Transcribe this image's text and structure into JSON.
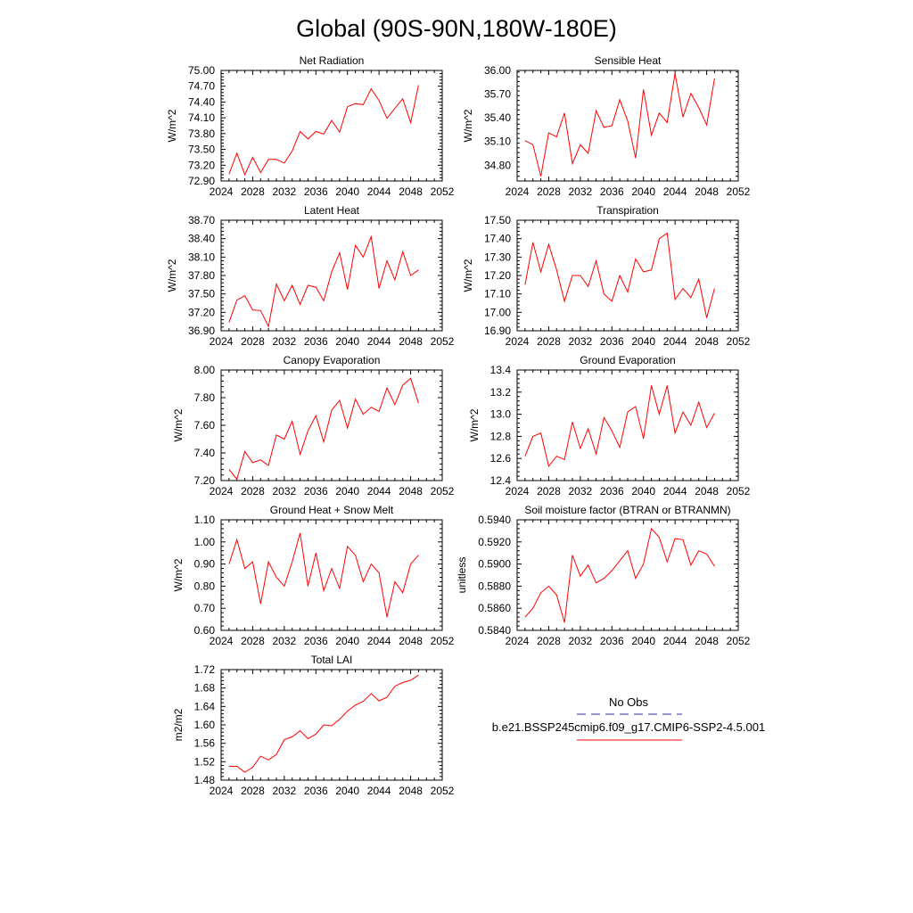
{
  "title": "Global (90S-90N,180W-180E)",
  "colors": {
    "model": "#ff0000",
    "obs": "#3030a0",
    "axis": "#000000"
  },
  "legend": {
    "obs_label": "No Obs",
    "model_label": "b.e21.BSSP245cmip6.f09_g17.CMIP6-SSP2-4.5.001"
  },
  "chart_data": [
    {
      "type": "line",
      "title": "Net Radiation",
      "ylabel": "W/m^2",
      "xlim": [
        2024,
        2052
      ],
      "ylim": [
        72.9,
        75.0
      ],
      "xticks": [
        2024,
        2028,
        2032,
        2036,
        2040,
        2044,
        2048,
        2052
      ],
      "yticks": [
        "72.90",
        "73.20",
        "73.50",
        "73.80",
        "74.10",
        "74.40",
        "74.70",
        "75.00"
      ],
      "series": [
        {
          "x": [
            2025,
            2026,
            2027,
            2028,
            2029,
            2030,
            2031,
            2032,
            2033,
            2034,
            2035,
            2036,
            2037,
            2038,
            2039,
            2040,
            2041,
            2042,
            2043,
            2044,
            2045,
            2046,
            2047,
            2048,
            2049
          ],
          "y": [
            73.03,
            73.43,
            73.02,
            73.35,
            73.06,
            73.31,
            73.31,
            73.24,
            73.47,
            73.84,
            73.7,
            73.84,
            73.79,
            74.05,
            73.83,
            74.31,
            74.37,
            74.35,
            74.65,
            74.43,
            74.09,
            74.28,
            74.46,
            74.01,
            74.72
          ]
        }
      ]
    },
    {
      "type": "line",
      "title": "Sensible Heat",
      "ylabel": "W/m^2",
      "xlim": [
        2024,
        2052
      ],
      "ylim": [
        34.6,
        36.0
      ],
      "xticks": [
        2024,
        2028,
        2032,
        2036,
        2040,
        2044,
        2048,
        2052
      ],
      "yticks": [
        "34.80",
        "35.10",
        "35.40",
        "35.70",
        "36.00"
      ],
      "series": [
        {
          "x": [
            2025,
            2026,
            2027,
            2028,
            2029,
            2030,
            2031,
            2032,
            2033,
            2034,
            2035,
            2036,
            2037,
            2038,
            2039,
            2040,
            2041,
            2042,
            2043,
            2044,
            2045,
            2046,
            2047,
            2048,
            2049
          ],
          "y": [
            35.11,
            35.06,
            34.66,
            35.21,
            35.16,
            35.46,
            34.82,
            35.06,
            34.95,
            35.49,
            35.28,
            35.3,
            35.63,
            35.36,
            34.89,
            35.76,
            35.18,
            35.46,
            35.34,
            35.96,
            35.41,
            35.71,
            35.53,
            35.31,
            35.9
          ]
        }
      ]
    },
    {
      "type": "line",
      "title": "Latent Heat",
      "ylabel": "W/m^2",
      "xlim": [
        2024,
        2052
      ],
      "ylim": [
        36.9,
        38.7
      ],
      "xticks": [
        2024,
        2028,
        2032,
        2036,
        2040,
        2044,
        2048,
        2052
      ],
      "yticks": [
        "36.90",
        "37.20",
        "37.50",
        "37.80",
        "38.10",
        "38.40",
        "38.70"
      ],
      "series": [
        {
          "x": [
            2025,
            2026,
            2027,
            2028,
            2029,
            2030,
            2031,
            2032,
            2033,
            2034,
            2035,
            2036,
            2037,
            2038,
            2039,
            2040,
            2041,
            2042,
            2043,
            2044,
            2045,
            2046,
            2047,
            2048,
            2049
          ],
          "y": [
            37.04,
            37.4,
            37.47,
            37.24,
            37.23,
            36.97,
            37.66,
            37.39,
            37.64,
            37.33,
            37.64,
            37.61,
            37.39,
            37.86,
            38.17,
            37.57,
            38.29,
            38.1,
            38.43,
            37.59,
            38.04,
            37.73,
            38.19,
            37.8,
            37.89
          ]
        }
      ]
    },
    {
      "type": "line",
      "title": "Transpiration",
      "ylabel": "W/m^2",
      "xlim": [
        2024,
        2052
      ],
      "ylim": [
        16.9,
        17.5
      ],
      "xticks": [
        2024,
        2028,
        2032,
        2036,
        2040,
        2044,
        2048,
        2052
      ],
      "yticks": [
        "16.90",
        "17.00",
        "17.10",
        "17.20",
        "17.30",
        "17.40",
        "17.50"
      ],
      "series": [
        {
          "x": [
            2025,
            2026,
            2027,
            2028,
            2029,
            2030,
            2031,
            2032,
            2033,
            2034,
            2035,
            2036,
            2037,
            2038,
            2039,
            2040,
            2041,
            2042,
            2043,
            2044,
            2045,
            2046,
            2047,
            2048,
            2049
          ],
          "y": [
            17.15,
            17.38,
            17.22,
            17.37,
            17.23,
            17.06,
            17.2,
            17.2,
            17.14,
            17.28,
            17.1,
            17.06,
            17.2,
            17.11,
            17.29,
            17.22,
            17.23,
            17.4,
            17.43,
            17.07,
            17.13,
            17.08,
            17.18,
            16.97,
            17.13
          ]
        }
      ]
    },
    {
      "type": "line",
      "title": "Canopy Evaporation",
      "ylabel": "W/m^2",
      "xlim": [
        2024,
        2052
      ],
      "ylim": [
        7.2,
        8.0
      ],
      "xticks": [
        2024,
        2028,
        2032,
        2036,
        2040,
        2044,
        2048,
        2052
      ],
      "yticks": [
        "7.20",
        "7.40",
        "7.60",
        "7.80",
        "8.00"
      ],
      "series": [
        {
          "x": [
            2025,
            2026,
            2027,
            2028,
            2029,
            2030,
            2031,
            2032,
            2033,
            2034,
            2035,
            2036,
            2037,
            2038,
            2039,
            2040,
            2041,
            2042,
            2043,
            2044,
            2045,
            2046,
            2047,
            2048,
            2049
          ],
          "y": [
            7.28,
            7.21,
            7.41,
            7.33,
            7.35,
            7.31,
            7.53,
            7.5,
            7.63,
            7.39,
            7.56,
            7.67,
            7.48,
            7.71,
            7.78,
            7.58,
            7.79,
            7.68,
            7.73,
            7.7,
            7.87,
            7.75,
            7.89,
            7.94,
            7.76
          ]
        }
      ]
    },
    {
      "type": "line",
      "title": "Ground Evaporation",
      "ylabel": "W/m^2",
      "xlim": [
        2024,
        2052
      ],
      "ylim": [
        12.4,
        13.4
      ],
      "xticks": [
        2024,
        2028,
        2032,
        2036,
        2040,
        2044,
        2048,
        2052
      ],
      "yticks": [
        "12.4",
        "12.6",
        "12.8",
        "13.0",
        "13.2",
        "13.4"
      ],
      "series": [
        {
          "x": [
            2025,
            2026,
            2027,
            2028,
            2029,
            2030,
            2031,
            2032,
            2033,
            2034,
            2035,
            2036,
            2037,
            2038,
            2039,
            2040,
            2041,
            2042,
            2043,
            2044,
            2045,
            2046,
            2047,
            2048,
            2049
          ],
          "y": [
            12.62,
            12.8,
            12.83,
            12.53,
            12.62,
            12.59,
            12.93,
            12.69,
            12.87,
            12.64,
            12.97,
            12.85,
            12.7,
            13.02,
            13.07,
            12.78,
            13.26,
            13.0,
            13.26,
            12.83,
            13.02,
            12.9,
            13.11,
            12.88,
            13.01
          ]
        }
      ]
    },
    {
      "type": "line",
      "title": "Ground Heat + Snow Melt",
      "ylabel": "W/m^2",
      "xlim": [
        2024,
        2052
      ],
      "ylim": [
        0.6,
        1.1
      ],
      "xticks": [
        2024,
        2028,
        2032,
        2036,
        2040,
        2044,
        2048,
        2052
      ],
      "yticks": [
        "0.60",
        "0.70",
        "0.80",
        "0.90",
        "1.00",
        "1.10"
      ],
      "series": [
        {
          "x": [
            2025,
            2026,
            2027,
            2028,
            2029,
            2030,
            2031,
            2032,
            2033,
            2034,
            2035,
            2036,
            2037,
            2038,
            2039,
            2040,
            2041,
            2042,
            2043,
            2044,
            2045,
            2046,
            2047,
            2048,
            2049
          ],
          "y": [
            0.9,
            1.01,
            0.88,
            0.91,
            0.72,
            0.91,
            0.84,
            0.8,
            0.91,
            1.04,
            0.8,
            0.95,
            0.78,
            0.88,
            0.79,
            0.98,
            0.94,
            0.82,
            0.9,
            0.86,
            0.66,
            0.82,
            0.77,
            0.9,
            0.94
          ]
        }
      ]
    },
    {
      "type": "line",
      "title": "Soil moisture factor (BTRAN or BTRANMN)",
      "ylabel": "unitless",
      "xlim": [
        2024,
        2052
      ],
      "ylim": [
        0.584,
        0.594
      ],
      "xticks": [
        2024,
        2028,
        2032,
        2036,
        2040,
        2044,
        2048,
        2052
      ],
      "yticks": [
        "0.5840",
        "0.5860",
        "0.5880",
        "0.5900",
        "0.5920",
        "0.5940"
      ],
      "series": [
        {
          "x": [
            2025,
            2026,
            2027,
            2028,
            2029,
            2030,
            2031,
            2032,
            2033,
            2034,
            2035,
            2036,
            2037,
            2038,
            2039,
            2040,
            2041,
            2042,
            2043,
            2044,
            2045,
            2046,
            2047,
            2048,
            2049
          ],
          "y": [
            0.5852,
            0.586,
            0.5874,
            0.588,
            0.5872,
            0.5847,
            0.5908,
            0.5889,
            0.5899,
            0.5883,
            0.5887,
            0.5894,
            0.5903,
            0.5912,
            0.5887,
            0.59,
            0.5932,
            0.5924,
            0.5902,
            0.5923,
            0.5922,
            0.5899,
            0.5912,
            0.5909,
            0.5898
          ]
        }
      ]
    },
    {
      "type": "line",
      "title": "Total LAI",
      "ylabel": "m2/m2",
      "xlim": [
        2024,
        2052
      ],
      "ylim": [
        1.48,
        1.72
      ],
      "xticks": [
        2024,
        2028,
        2032,
        2036,
        2040,
        2044,
        2048,
        2052
      ],
      "yticks": [
        "1.48",
        "1.52",
        "1.56",
        "1.60",
        "1.64",
        "1.68",
        "1.72"
      ],
      "series": [
        {
          "x": [
            2025,
            2026,
            2027,
            2028,
            2029,
            2030,
            2031,
            2032,
            2033,
            2034,
            2035,
            2036,
            2037,
            2038,
            2039,
            2040,
            2041,
            2042,
            2043,
            2044,
            2045,
            2046,
            2047,
            2048,
            2049
          ],
          "y": [
            1.51,
            1.51,
            1.497,
            1.508,
            1.532,
            1.524,
            1.536,
            1.568,
            1.574,
            1.587,
            1.57,
            1.58,
            1.6,
            1.598,
            1.612,
            1.63,
            1.643,
            1.651,
            1.668,
            1.652,
            1.66,
            1.684,
            1.692,
            1.697,
            1.708
          ]
        }
      ]
    }
  ]
}
